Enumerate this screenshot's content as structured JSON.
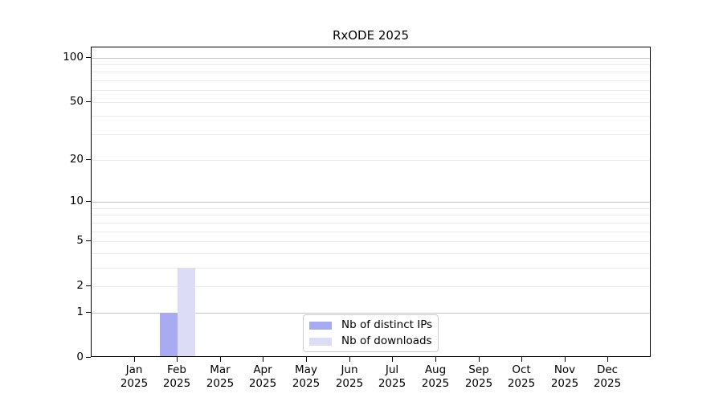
{
  "chart_data": {
    "type": "bar",
    "title": "RxODE 2025",
    "y_scale": "log1p",
    "grid": "horizontal-only",
    "legend_position": "bottom-center-inside",
    "categories": [
      "Jan",
      "Feb",
      "Mar",
      "Apr",
      "May",
      "Jun",
      "Jul",
      "Aug",
      "Sep",
      "Oct",
      "Nov",
      "Dec"
    ],
    "years": [
      "2025",
      "2025",
      "2025",
      "2025",
      "2025",
      "2025",
      "2025",
      "2025",
      "2025",
      "2025",
      "2025",
      "2025"
    ],
    "y_ticks": [
      0,
      1,
      2,
      5,
      10,
      20,
      50,
      100
    ],
    "grid_major_values": [
      1,
      10,
      100
    ],
    "grid_minor_values": [
      2,
      3,
      4,
      5,
      6,
      7,
      8,
      9,
      20,
      30,
      40,
      50,
      60,
      70,
      80,
      90
    ],
    "ylim": [
      0,
      117
    ],
    "series": [
      {
        "name": "Nb of distinct IPs",
        "color": "#a8aaf2",
        "values": [
          0,
          1,
          0,
          0,
          0,
          0,
          0,
          0,
          0,
          0,
          0,
          0
        ]
      },
      {
        "name": "Nb of downloads",
        "color": "#dcdcf7",
        "values": [
          0,
          3,
          0,
          0,
          0,
          0,
          0,
          0,
          0,
          0,
          0,
          0
        ]
      }
    ],
    "colors": {
      "grid_major": "#c4c4c4",
      "grid_minor": "#ebebeb",
      "axis": "#000000",
      "text": "#000000",
      "legend_border": "#cccccc"
    }
  }
}
